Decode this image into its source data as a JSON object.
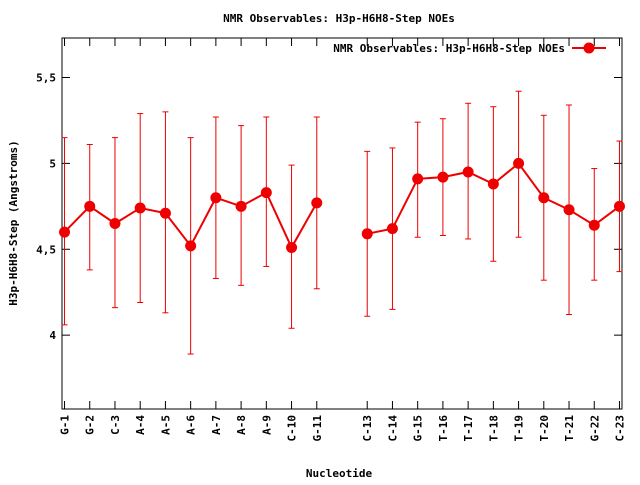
{
  "chart_data": {
    "type": "line",
    "title": "NMR Observables: H3p-H6H8-Step NOEs",
    "xlabel": "Nucleotide",
    "ylabel": "H3p-H6H8-Step (Angstroms)",
    "legend": {
      "label": "NMR Observables: H3p-H6H8-Step NOEs",
      "placement": "top-right"
    },
    "ylim": [
      3.57,
      5.73
    ],
    "yticks": [
      4,
      4.5,
      5,
      5.5
    ],
    "ytick_labels": [
      "4",
      "4,5",
      "5",
      "5,5"
    ],
    "xlim": [
      0.9,
      23.1
    ],
    "color": "#ee0000",
    "categories": [
      "G-1",
      "G-2",
      "C-3",
      "A-4",
      "A-5",
      "A-6",
      "A-7",
      "A-8",
      "A-9",
      "C-10",
      "G-11",
      "C-13",
      "C-14",
      "G-15",
      "T-16",
      "T-17",
      "T-18",
      "T-19",
      "T-20",
      "T-21",
      "G-22",
      "C-23"
    ],
    "x": [
      1,
      2,
      3,
      4,
      5,
      6,
      7,
      8,
      9,
      10,
      11,
      13,
      14,
      15,
      16,
      17,
      18,
      19,
      20,
      21,
      22,
      23
    ],
    "y": [
      4.6,
      4.75,
      4.65,
      4.74,
      4.71,
      4.52,
      4.8,
      4.75,
      4.83,
      4.51,
      4.77,
      4.59,
      4.62,
      4.91,
      4.92,
      4.95,
      4.88,
      5.0,
      4.8,
      4.73,
      4.64,
      4.75
    ],
    "err_low": [
      4.06,
      4.38,
      4.16,
      4.19,
      4.13,
      3.89,
      4.33,
      4.29,
      4.4,
      4.04,
      4.27,
      4.11,
      4.15,
      4.57,
      4.58,
      4.56,
      4.43,
      4.57,
      4.32,
      4.12,
      4.32,
      4.37
    ],
    "err_high": [
      5.15,
      5.11,
      5.15,
      5.29,
      5.3,
      5.15,
      5.27,
      5.22,
      5.27,
      4.99,
      5.27,
      5.07,
      5.09,
      5.24,
      5.26,
      5.35,
      5.33,
      5.42,
      5.28,
      5.34,
      4.97,
      5.13
    ],
    "segments": [
      [
        0,
        10
      ],
      [
        11,
        21
      ]
    ],
    "grid": false
  }
}
